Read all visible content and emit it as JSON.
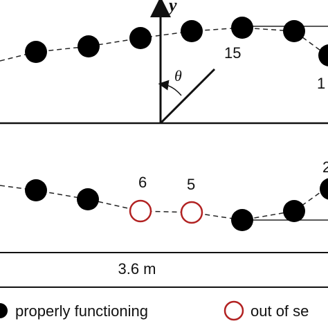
{
  "axis": {
    "y_label": "y",
    "angle_label": "θ"
  },
  "top_row": {
    "labels": [
      "15",
      "1"
    ]
  },
  "bottom_row": {
    "labels": [
      "6",
      "5",
      "2"
    ]
  },
  "dimension": "3.6 m",
  "legend": {
    "items": [
      {
        "label": "properly functioning"
      },
      {
        "label": "out of se"
      }
    ]
  }
}
